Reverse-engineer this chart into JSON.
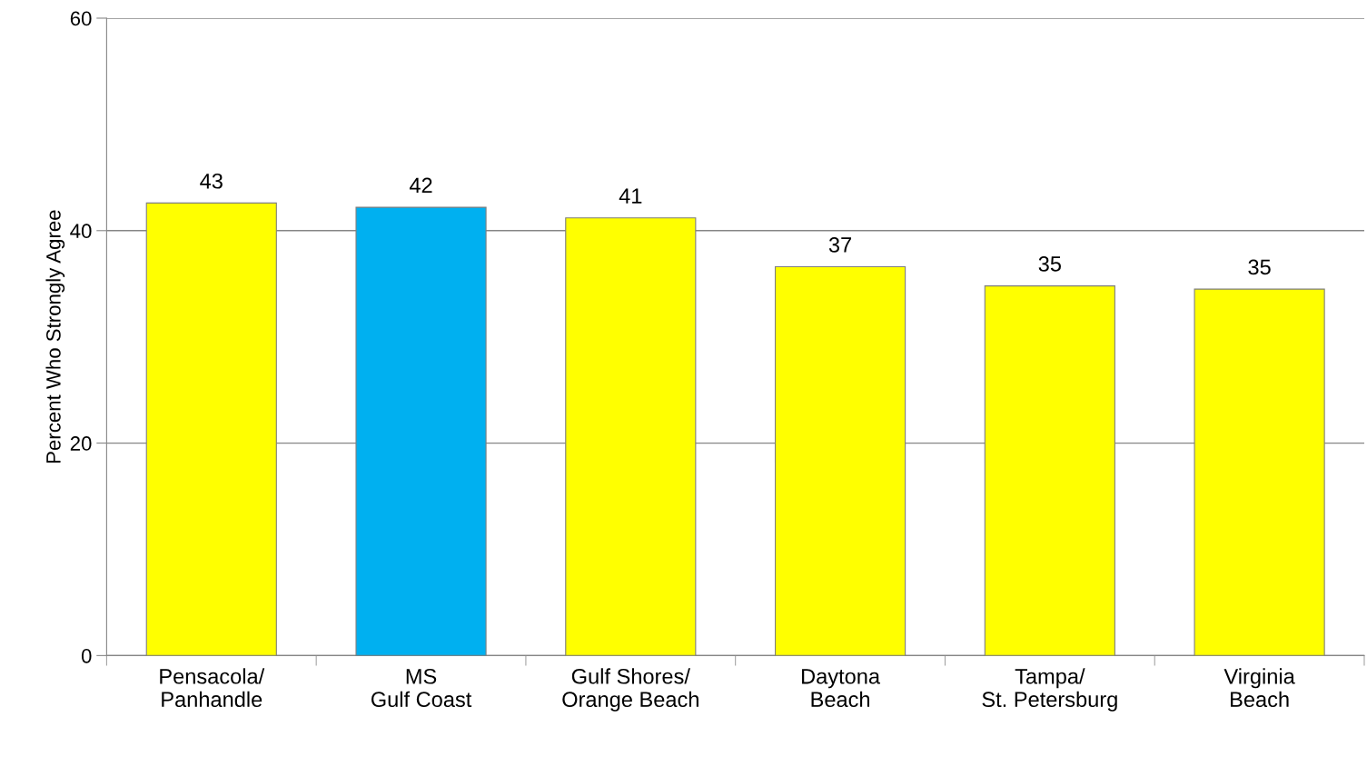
{
  "chart_data": {
    "type": "bar",
    "ylabel": "Percent Who Strongly Agree",
    "categories": [
      "Pensacola/\nPanhandle",
      "MS\nGulf Coast",
      "Gulf Shores/\nOrange Beach",
      "Daytona\nBeach",
      "Tampa/\nSt. Petersburg",
      "Virginia\nBeach"
    ],
    "values": [
      42.6,
      42.2,
      41.2,
      36.6,
      34.8,
      34.5
    ],
    "value_labels": [
      "43",
      "42",
      "41",
      "37",
      "35",
      "35"
    ],
    "colors": [
      "#ffff00",
      "#00b0f0",
      "#ffff00",
      "#ffff00",
      "#ffff00",
      "#ffff00"
    ],
    "ylim": [
      0,
      60
    ],
    "yticks": [
      0,
      20,
      40,
      60
    ],
    "grid": "y",
    "legend": false
  }
}
